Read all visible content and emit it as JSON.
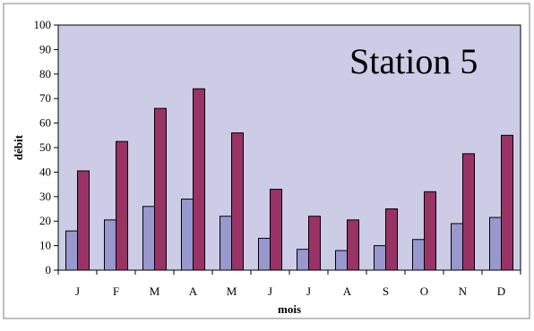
{
  "chart_data": {
    "type": "bar",
    "title": "Station 5",
    "xlabel": "mois",
    "ylabel": "débit",
    "categories": [
      "J",
      "F",
      "M",
      "A",
      "M",
      "J",
      "J",
      "A",
      "S",
      "O",
      "N",
      "D"
    ],
    "ylim": [
      0,
      100
    ],
    "yticks": [
      0,
      10,
      20,
      30,
      40,
      50,
      60,
      70,
      80,
      90,
      100
    ],
    "grid": false,
    "legend": "none",
    "colors": {
      "plot_background": "#cccce6",
      "series_1": "#9898ce",
      "series_2": "#993366",
      "border": "#000000",
      "outer_border": "#808080"
    },
    "series": [
      {
        "values": [
          16,
          20.5,
          26,
          29,
          22,
          13,
          8.5,
          8,
          10,
          12.5,
          19,
          21.5
        ]
      },
      {
        "values": [
          40.5,
          52.5,
          66,
          74,
          56,
          33,
          22,
          20.5,
          25,
          32,
          47.5,
          55
        ]
      }
    ]
  }
}
